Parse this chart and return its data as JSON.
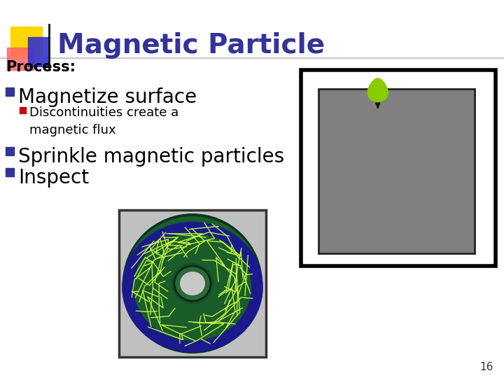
{
  "title_main": "Magnetic Particle",
  "title_sub": "Process:",
  "bullet1": "Magnetize surface",
  "sub_bullet1": "Discontinuities create a\nmagnetic flux",
  "bullet2": "Sprinkle magnetic particles",
  "bullet3": "Inspect",
  "page_number": "16",
  "bg_color": "#ffffff",
  "title_color": "#333399",
  "process_color": "#000000",
  "bullet_color": "#000000",
  "blue_bullet_color": "#333399",
  "red_bullet_color": "#CC0000",
  "sub_text_color": "#000000",
  "logo_yellow": "#FFD700",
  "logo_red": "#FF6666",
  "logo_blue": "#3333CC",
  "line_color": "#BBBBCC",
  "gray_box_color": "#808080",
  "inner_gray_color": "#7A7A7A",
  "outer_box_border": "#000000",
  "green_blob_color": "#88CC00",
  "title_fontsize": 28,
  "process_fontsize": 15,
  "bullet1_fontsize": 20,
  "sub_bullet_fontsize": 13,
  "bullet23_fontsize": 20,
  "page_fontsize": 11
}
